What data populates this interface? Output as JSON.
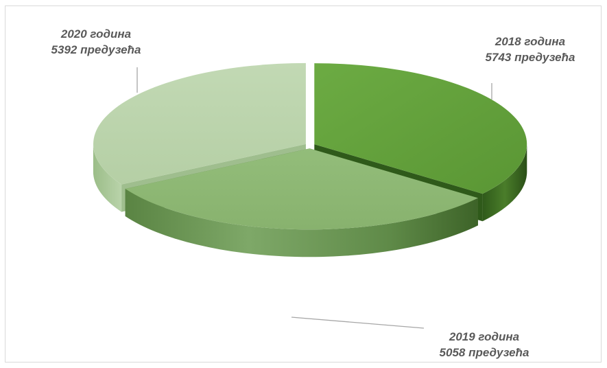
{
  "chart_data": {
    "type": "pie",
    "title": "",
    "slices": [
      {
        "label_year": "2018 година",
        "label_count": "5743 предузећа",
        "value": 5743,
        "color": "#62a03a"
      },
      {
        "label_year": "2019 година",
        "label_count": "5058 предузећа",
        "value": 5058,
        "color": "#8db774"
      },
      {
        "label_year": "2020 година",
        "label_count": "5392 предузећа",
        "value": 5392,
        "color": "#b9d3aa"
      }
    ]
  }
}
